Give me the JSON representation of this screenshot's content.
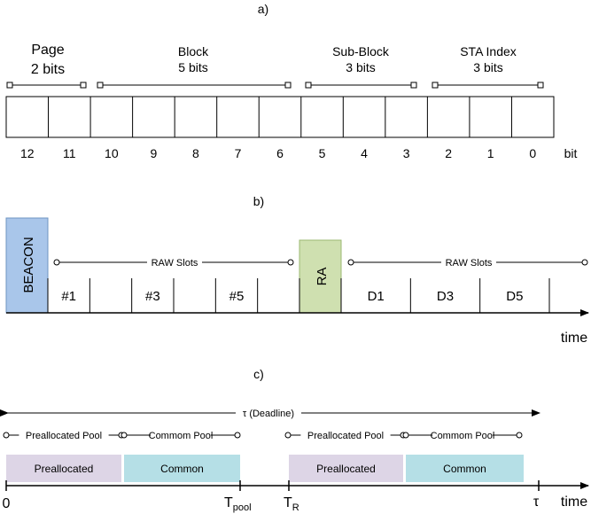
{
  "panel_a": {
    "label": "a)",
    "fields": [
      {
        "name": "Page",
        "bits": "2 bits"
      },
      {
        "name": "Block",
        "bits": "5 bits"
      },
      {
        "name": "Sub-Block",
        "bits": "3 bits"
      },
      {
        "name": "STA Index",
        "bits": "3 bits"
      }
    ],
    "bit_numbers": [
      "12",
      "11",
      "10",
      "9",
      "8",
      "7",
      "6",
      "5",
      "4",
      "3",
      "2",
      "1",
      "0"
    ],
    "bit_unit": "bit"
  },
  "panel_b": {
    "label": "b)",
    "beacon": "BEACON",
    "ra": "RA",
    "raw_slots_label": "RAW Slots",
    "slots_left": [
      "#1",
      "",
      "#3",
      "",
      "#5",
      ""
    ],
    "slots_right": [
      "D1",
      "D3",
      "D5"
    ],
    "time_label": "time",
    "colors": {
      "beacon": "#a9c6ea",
      "ra": "#cfe0b0"
    }
  },
  "panel_c": {
    "label": "c)",
    "deadline_label": "τ (Deadline)",
    "pool_labels": [
      "Preallocated Pool",
      "Commom Pool",
      "Preallocated Pool",
      "Commom Pool"
    ],
    "bars": [
      "Preallocated",
      "Common",
      "Preallocated",
      "Common"
    ],
    "axis_zero": "0",
    "t_pool": {
      "main": "T",
      "sub": "pool"
    },
    "t_r": {
      "main": "T",
      "sub": "R"
    },
    "tau": "τ",
    "time_label": "time",
    "colors": {
      "preallocated": "#ddd5e6",
      "common": "#b5dfe6"
    }
  }
}
